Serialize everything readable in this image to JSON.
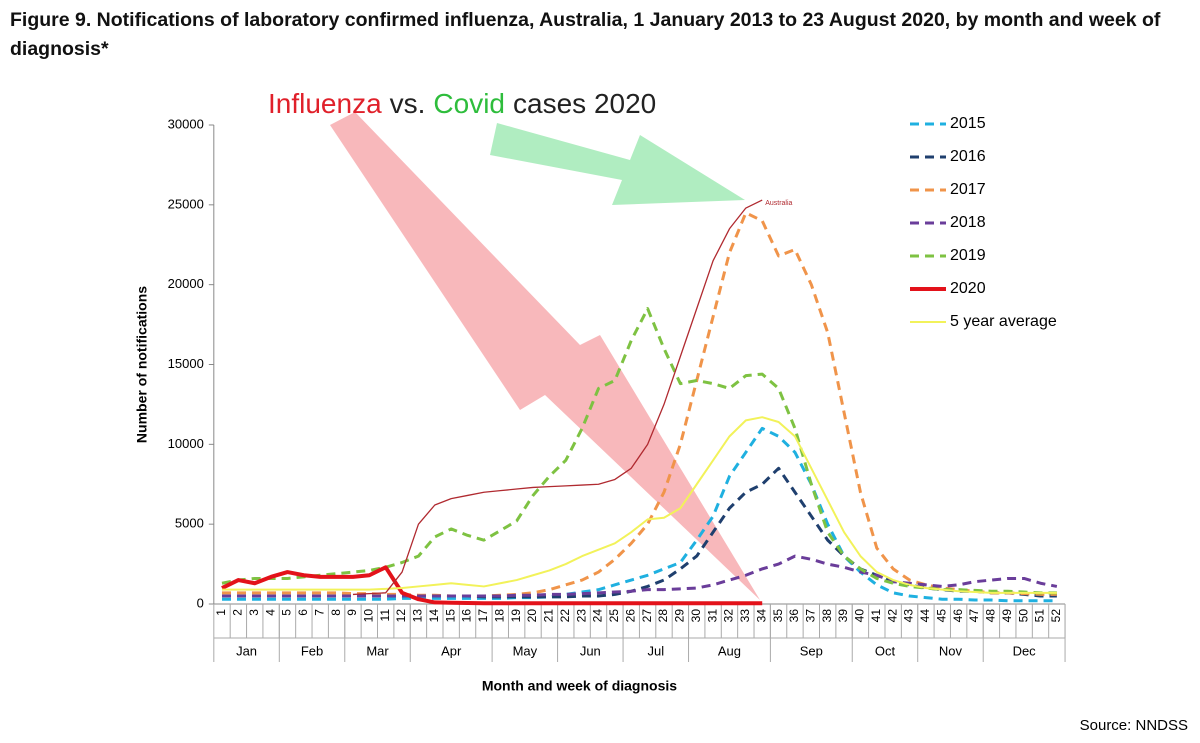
{
  "chart_data": {
    "type": "line",
    "title": "Figure 9. Notifications of laboratory confirmed influenza, Australia, 1 January 2013 to 23 August 2020, by month and week of diagnosis*",
    "annotation_parts": [
      {
        "text": "Influenza",
        "color": "#e0202a"
      },
      {
        "text": "vs.",
        "color": "#222222"
      },
      {
        "text": "Covid",
        "color": "#2ebd3c"
      },
      {
        "text": "cases 2020",
        "color": "#222222"
      }
    ],
    "y_label": "Number of notifications",
    "x_label": "Month and week of diagnosis",
    "source": "Source: NNDSS",
    "x": [
      1,
      2,
      3,
      4,
      5,
      6,
      7,
      8,
      9,
      10,
      11,
      12,
      13,
      14,
      15,
      16,
      17,
      18,
      19,
      20,
      21,
      22,
      23,
      24,
      25,
      26,
      27,
      28,
      29,
      30,
      31,
      32,
      33,
      34,
      35,
      36,
      37,
      38,
      39,
      40,
      41,
      42,
      43,
      44,
      45,
      46,
      47,
      48,
      49,
      50,
      51,
      52
    ],
    "xlim": [
      1,
      52
    ],
    "months": [
      {
        "label": "Jan",
        "from": 1,
        "to": 4
      },
      {
        "label": "Feb",
        "from": 5,
        "to": 8
      },
      {
        "label": "Mar",
        "from": 9,
        "to": 12
      },
      {
        "label": "Apr",
        "from": 13,
        "to": 17
      },
      {
        "label": "May",
        "from": 18,
        "to": 21
      },
      {
        "label": "Jun",
        "from": 22,
        "to": 25
      },
      {
        "label": "Jul",
        "from": 26,
        "to": 29
      },
      {
        "label": "Aug",
        "from": 30,
        "to": 34
      },
      {
        "label": "Sep",
        "from": 35,
        "to": 39
      },
      {
        "label": "Oct",
        "from": 40,
        "to": 43
      },
      {
        "label": "Nov",
        "from": 44,
        "to": 47
      },
      {
        "label": "Dec",
        "from": 48,
        "to": 52
      }
    ],
    "ylim": [
      0,
      30000
    ],
    "yticks": [
      0,
      5000,
      10000,
      15000,
      20000,
      25000,
      30000
    ],
    "grid": false,
    "legend": "right",
    "series": [
      {
        "name": "2015",
        "color": "#1fb0e0",
        "dash": true,
        "width": 3,
        "values": [
          300,
          300,
          300,
          300,
          300,
          300,
          300,
          300,
          300,
          300,
          300,
          350,
          350,
          350,
          350,
          350,
          350,
          350,
          400,
          400,
          450,
          600,
          750,
          900,
          1200,
          1500,
          1800,
          2200,
          2600,
          4000,
          5500,
          8000,
          9500,
          11000,
          10500,
          9500,
          7500,
          5000,
          3000,
          2000,
          1200,
          700,
          500,
          400,
          300,
          300,
          250,
          250,
          200,
          200,
          200,
          200
        ]
      },
      {
        "name": "2016",
        "color": "#1f3f6e",
        "dash": true,
        "width": 3,
        "values": [
          500,
          500,
          500,
          500,
          500,
          500,
          500,
          500,
          500,
          500,
          500,
          500,
          500,
          500,
          500,
          500,
          450,
          450,
          450,
          450,
          450,
          450,
          500,
          500,
          600,
          800,
          1100,
          1500,
          2200,
          3000,
          4500,
          6000,
          7000,
          7500,
          8500,
          7000,
          5500,
          4000,
          3000,
          2200,
          1800,
          1400,
          1200,
          1000,
          900,
          800,
          800,
          700,
          700,
          600,
          500,
          500
        ]
      },
      {
        "name": "2017",
        "color": "#f0944a",
        "dash": true,
        "width": 3,
        "values": [
          700,
          700,
          700,
          700,
          700,
          700,
          700,
          700,
          650,
          650,
          600,
          600,
          550,
          550,
          500,
          500,
          500,
          550,
          600,
          700,
          900,
          1200,
          1500,
          2000,
          2800,
          3800,
          5000,
          7000,
          10000,
          14000,
          18000,
          22000,
          24500,
          24000,
          21800,
          22200,
          20000,
          17000,
          12000,
          7000,
          3500,
          2200,
          1500,
          1200,
          1000,
          900,
          800,
          700,
          700,
          650,
          600,
          600
        ]
      },
      {
        "name": "2018",
        "color": "#6a3d9a",
        "dash": true,
        "width": 3,
        "values": [
          500,
          500,
          500,
          500,
          500,
          500,
          500,
          500,
          500,
          500,
          500,
          500,
          500,
          500,
          500,
          500,
          500,
          500,
          550,
          550,
          600,
          600,
          650,
          700,
          750,
          800,
          900,
          900,
          950,
          1000,
          1200,
          1500,
          1800,
          2200,
          2500,
          3000,
          2800,
          2500,
          2300,
          2000,
          1800,
          1400,
          1300,
          1200,
          1100,
          1200,
          1400,
          1500,
          1600,
          1600,
          1300,
          1100
        ]
      },
      {
        "name": "2019",
        "color": "#7ec242",
        "dash": true,
        "width": 3,
        "values": [
          1300,
          1500,
          1600,
          1600,
          1600,
          1700,
          1800,
          1900,
          2000,
          2100,
          2300,
          2600,
          3000,
          4200,
          4700,
          4300,
          4000,
          4600,
          5200,
          6800,
          8000,
          9000,
          11000,
          13500,
          14000,
          16500,
          18500,
          16000,
          13800,
          14000,
          13800,
          13500,
          14300,
          14400,
          13500,
          11000,
          7500,
          4500,
          3000,
          2200,
          1600,
          1300,
          1100,
          1000,
          900,
          900,
          850,
          800,
          800,
          750,
          700,
          700
        ]
      },
      {
        "name": "2020",
        "color": "#e3121a",
        "dash": false,
        "width": 4,
        "values": [
          1000,
          1500,
          1300,
          1700,
          2000,
          1800,
          1700,
          1700,
          1700,
          1800,
          2300,
          700,
          300,
          100,
          80,
          60,
          50,
          50,
          50,
          50,
          50,
          50,
          50,
          50,
          50,
          50,
          50,
          50,
          50,
          50,
          50,
          50,
          50,
          50,
          null,
          null,
          null,
          null,
          null,
          null,
          null,
          null,
          null,
          null,
          null,
          null,
          null,
          null,
          null,
          null,
          null,
          null
        ]
      },
      {
        "name": "5 year average",
        "color": "#f2f25a",
        "dash": false,
        "width": 2,
        "values": [
          900,
          900,
          900,
          900,
          900,
          900,
          900,
          900,
          900,
          900,
          950,
          1000,
          1100,
          1200,
          1300,
          1200,
          1100,
          1300,
          1500,
          1800,
          2100,
          2500,
          3000,
          3400,
          3800,
          4500,
          5300,
          5400,
          6000,
          7500,
          9000,
          10500,
          11500,
          11700,
          11400,
          10500,
          8500,
          6500,
          4500,
          3000,
          2000,
          1500,
          1200,
          1000,
          900,
          800,
          750,
          700,
          700,
          700,
          700,
          700
        ]
      }
    ],
    "overlay": {
      "name": "Australia",
      "color": "#b02a30",
      "values": [
        null,
        null,
        null,
        null,
        null,
        null,
        null,
        null,
        600,
        650,
        700,
        2000,
        5000,
        6200,
        6600,
        6800,
        7000,
        7100,
        7200,
        7300,
        7350,
        7400,
        7450,
        7500,
        7800,
        8500,
        10000,
        12500,
        15500,
        18500,
        21500,
        23500,
        24800,
        25300,
        null,
        null,
        null,
        null,
        null,
        null,
        null,
        null,
        null,
        null,
        null,
        null,
        null,
        null,
        null,
        null,
        null,
        null
      ]
    }
  }
}
